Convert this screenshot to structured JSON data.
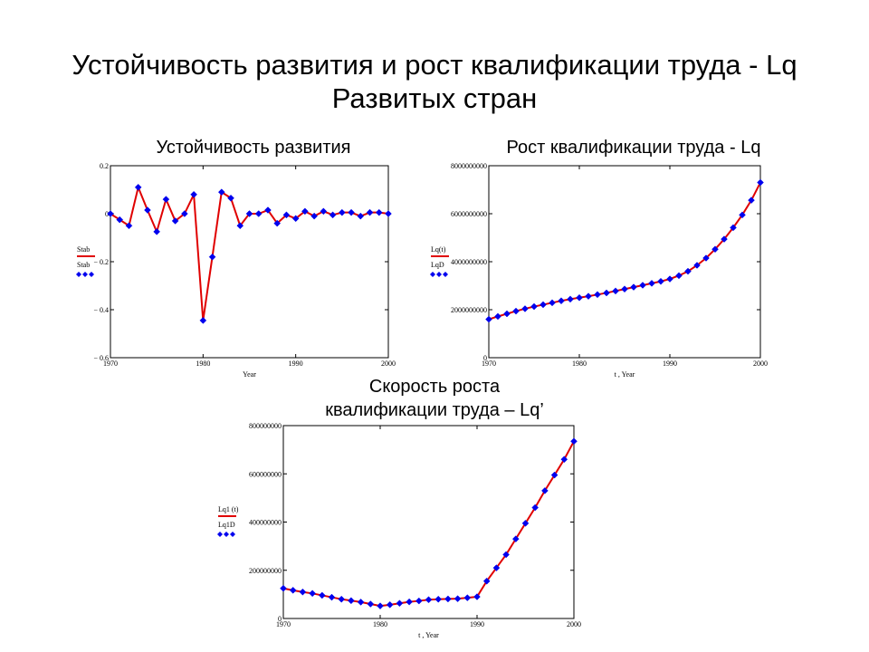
{
  "slide": {
    "title_line1": "Устойчивость развития и рост квалификации труда - Lq",
    "title_line2": "Развитых стран"
  },
  "colors": {
    "line": "#e00000",
    "marker": "#0000ee",
    "axis": "#000000"
  },
  "chart_data": [
    {
      "id": "stab",
      "type": "line",
      "title": "Устойчивость развития",
      "xlabel": "Year",
      "ylabel": "",
      "xlim": [
        1970,
        2000
      ],
      "ylim": [
        -0.6,
        0.2
      ],
      "xticks": [
        1970,
        1980,
        1990,
        2000
      ],
      "xtick_labels": [
        "1970",
        "1980",
        "1990",
        "2000"
      ],
      "yticks": [
        0.2,
        0,
        -0.2,
        -0.4,
        -0.6
      ],
      "ytick_labels": [
        "0.2",
        "0",
        "− 0.2",
        "− 0.4",
        "− 0.6"
      ],
      "grid": false,
      "legend_position": "left",
      "series": [
        {
          "name": "Stab",
          "style": "line",
          "x": [
            1970,
            1971,
            1972,
            1973,
            1974,
            1975,
            1976,
            1977,
            1978,
            1979,
            1980,
            1981,
            1982,
            1983,
            1984,
            1985,
            1986,
            1987,
            1988,
            1989,
            1990,
            1991,
            1992,
            1993,
            1994,
            1995,
            1996,
            1997,
            1998,
            1999,
            2000
          ],
          "y": [
            0,
            -0.025,
            -0.05,
            0.11,
            0.015,
            -0.075,
            0.06,
            -0.03,
            0,
            0.08,
            -0.445,
            -0.18,
            0.09,
            0.065,
            -0.05,
            0,
            0,
            0.015,
            -0.04,
            -0.005,
            -0.02,
            0.01,
            -0.01,
            0.01,
            -0.005,
            0.005,
            0.005,
            -0.01,
            0.005,
            0.005,
            0
          ]
        },
        {
          "name": "Stab",
          "style": "markers",
          "x": [
            1970,
            1971,
            1972,
            1973,
            1974,
            1975,
            1976,
            1977,
            1978,
            1979,
            1980,
            1981,
            1982,
            1983,
            1984,
            1985,
            1986,
            1987,
            1988,
            1989,
            1990,
            1991,
            1992,
            1993,
            1994,
            1995,
            1996,
            1997,
            1998,
            1999,
            2000
          ],
          "y": [
            0,
            -0.025,
            -0.05,
            0.11,
            0.015,
            -0.075,
            0.06,
            -0.03,
            0,
            0.08,
            -0.445,
            -0.18,
            0.09,
            0.065,
            -0.05,
            0,
            0,
            0.015,
            -0.04,
            -0.005,
            -0.02,
            0.01,
            -0.01,
            0.01,
            -0.005,
            0.005,
            0.005,
            -0.01,
            0.005,
            0.005,
            0
          ]
        }
      ]
    },
    {
      "id": "lq",
      "type": "line",
      "title": "Рост квалификации труда - Lq",
      "xlabel": "t , Year",
      "ylabel": "",
      "xlim": [
        1970,
        2000
      ],
      "ylim": [
        0,
        8000000000
      ],
      "xticks": [
        1970,
        1980,
        1990,
        2000
      ],
      "xtick_labels": [
        "1970",
        "1980",
        "1990",
        "2000"
      ],
      "yticks": [
        0,
        2000000000,
        4000000000,
        6000000000,
        8000000000
      ],
      "ytick_labels": [
        "0",
        "2000000000",
        "4000000000",
        "6000000000",
        "8000000000"
      ],
      "grid": false,
      "legend_position": "left",
      "series": [
        {
          "name": "Lq(t)",
          "style": "line",
          "x": [
            1970,
            1971,
            1972,
            1973,
            1974,
            1975,
            1976,
            1977,
            1978,
            1979,
            1980,
            1981,
            1982,
            1983,
            1984,
            1985,
            1986,
            1987,
            1988,
            1989,
            1990,
            1991,
            1992,
            1993,
            1994,
            1995,
            1996,
            1997,
            1998,
            1999,
            2000
          ],
          "y": [
            1600000000,
            1720000000,
            1830000000,
            1940000000,
            2040000000,
            2130000000,
            2210000000,
            2290000000,
            2370000000,
            2440000000,
            2500000000,
            2560000000,
            2630000000,
            2700000000,
            2780000000,
            2860000000,
            2940000000,
            3020000000,
            3100000000,
            3180000000,
            3280000000,
            3420000000,
            3600000000,
            3850000000,
            4150000000,
            4520000000,
            4940000000,
            5420000000,
            5950000000,
            6560000000,
            7300000000
          ]
        },
        {
          "name": "LqD",
          "style": "markers",
          "x": [
            1970,
            1971,
            1972,
            1973,
            1974,
            1975,
            1976,
            1977,
            1978,
            1979,
            1980,
            1981,
            1982,
            1983,
            1984,
            1985,
            1986,
            1987,
            1988,
            1989,
            1990,
            1991,
            1992,
            1993,
            1994,
            1995,
            1996,
            1997,
            1998,
            1999,
            2000
          ],
          "y": [
            1600000000,
            1720000000,
            1830000000,
            1940000000,
            2040000000,
            2130000000,
            2210000000,
            2290000000,
            2370000000,
            2440000000,
            2500000000,
            2560000000,
            2630000000,
            2700000000,
            2780000000,
            2860000000,
            2940000000,
            3020000000,
            3100000000,
            3180000000,
            3280000000,
            3420000000,
            3600000000,
            3850000000,
            4150000000,
            4520000000,
            4940000000,
            5420000000,
            5950000000,
            6560000000,
            7300000000
          ]
        }
      ]
    },
    {
      "id": "lq1",
      "type": "line",
      "title": "Скорость роста",
      "subtitle": "квалификации труда – Lq’",
      "xlabel": "t , Year",
      "ylabel": "",
      "xlim": [
        1970,
        2000
      ],
      "ylim": [
        0,
        800000000
      ],
      "xticks": [
        1970,
        1980,
        1990,
        2000
      ],
      "xtick_labels": [
        "1970",
        "1980",
        "1990",
        "2000"
      ],
      "yticks": [
        0,
        200000000,
        400000000,
        600000000,
        800000000
      ],
      "ytick_labels": [
        "0",
        "200000000",
        "400000000",
        "600000000",
        "800000000"
      ],
      "grid": false,
      "legend_position": "left",
      "series": [
        {
          "name": "Lq1 (t)",
          "style": "line",
          "x": [
            1970,
            1971,
            1972,
            1973,
            1974,
            1975,
            1976,
            1977,
            1978,
            1979,
            1980,
            1981,
            1982,
            1983,
            1984,
            1985,
            1986,
            1987,
            1988,
            1989,
            1990,
            1991,
            1992,
            1993,
            1994,
            1995,
            1996,
            1997,
            1998,
            1999,
            2000
          ],
          "y": [
            125000000,
            117000000,
            110000000,
            104000000,
            96000000,
            88000000,
            80000000,
            74000000,
            68000000,
            60000000,
            52000000,
            57000000,
            63000000,
            69000000,
            73000000,
            78000000,
            80000000,
            81000000,
            82000000,
            86000000,
            90000000,
            155000000,
            210000000,
            265000000,
            330000000,
            395000000,
            460000000,
            530000000,
            595000000,
            660000000,
            735000000
          ]
        },
        {
          "name": "Lq1D",
          "style": "markers",
          "x": [
            1970,
            1971,
            1972,
            1973,
            1974,
            1975,
            1976,
            1977,
            1978,
            1979,
            1980,
            1981,
            1982,
            1983,
            1984,
            1985,
            1986,
            1987,
            1988,
            1989,
            1990,
            1991,
            1992,
            1993,
            1994,
            1995,
            1996,
            1997,
            1998,
            1999,
            2000
          ],
          "y": [
            125000000,
            117000000,
            110000000,
            104000000,
            96000000,
            88000000,
            80000000,
            74000000,
            68000000,
            60000000,
            52000000,
            57000000,
            63000000,
            69000000,
            73000000,
            78000000,
            80000000,
            81000000,
            82000000,
            86000000,
            90000000,
            155000000,
            210000000,
            265000000,
            330000000,
            395000000,
            460000000,
            530000000,
            595000000,
            660000000,
            735000000
          ]
        }
      ]
    }
  ]
}
